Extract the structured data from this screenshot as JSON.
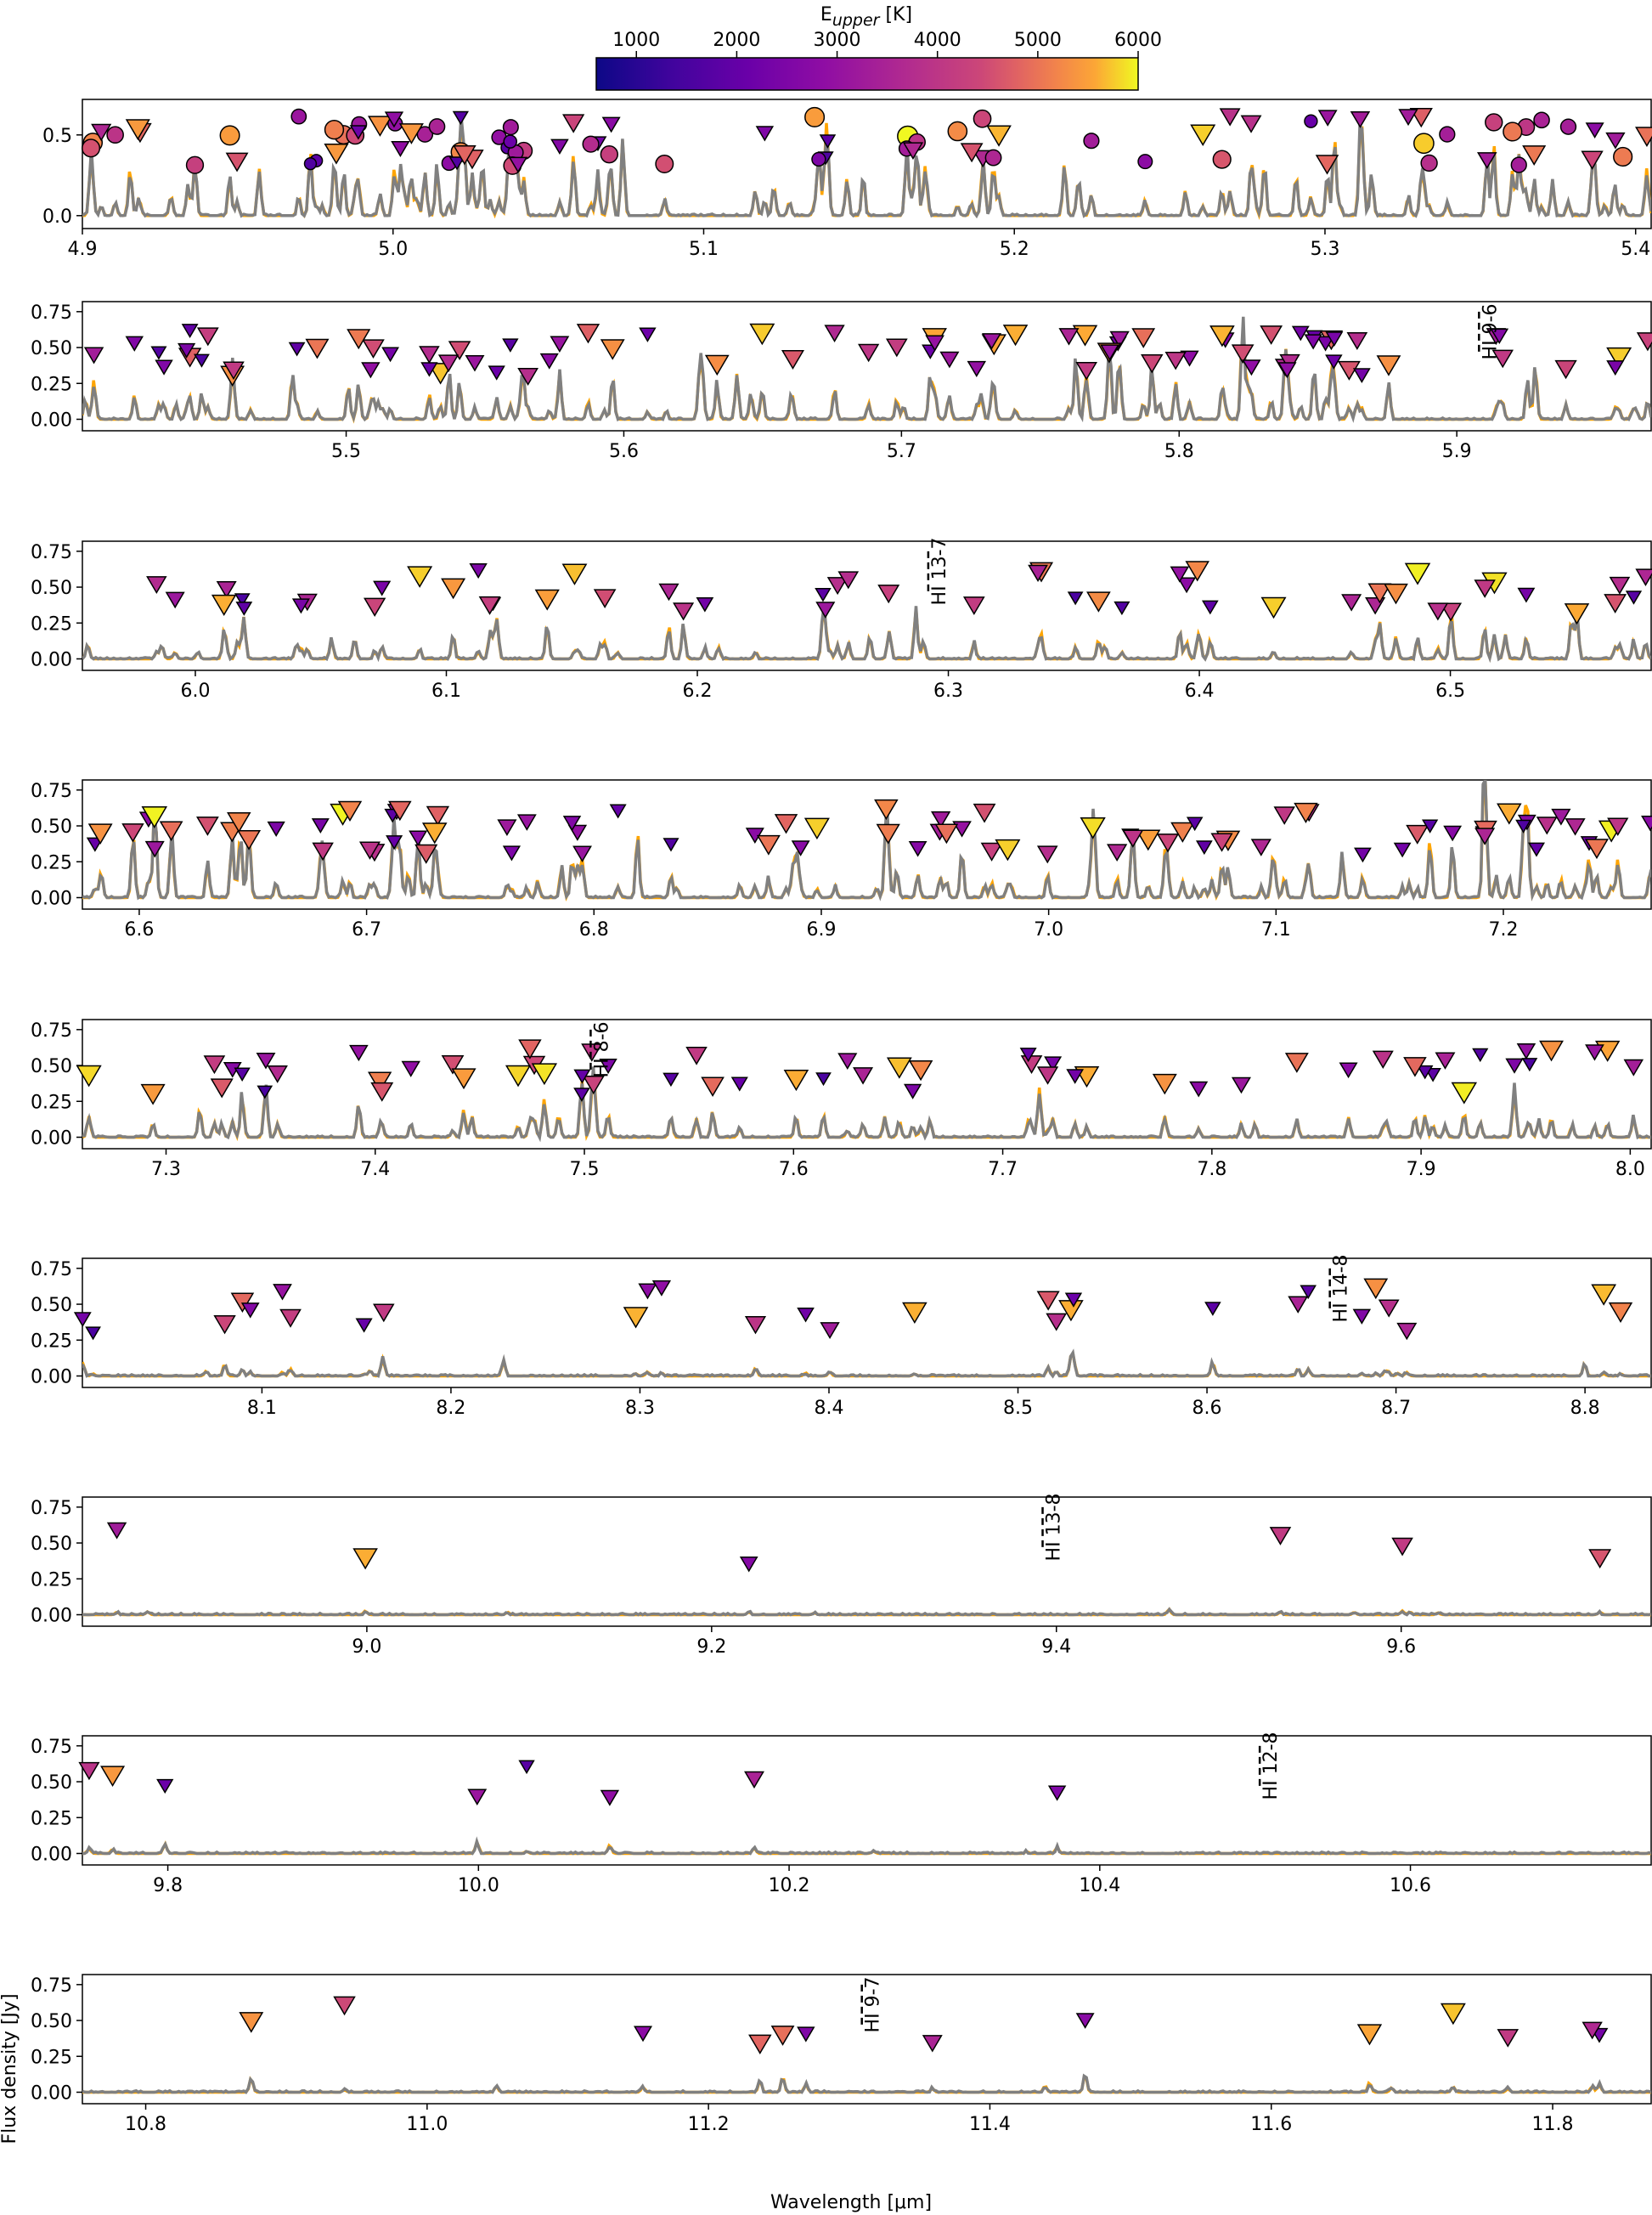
{
  "chart_data": {
    "type": "line",
    "xlabel": "Wavelength [μm]",
    "ylabel": "Flux density [Jy]",
    "series": [
      {
        "color": "#ffa500"
      },
      {
        "color": "#808080"
      }
    ],
    "colorbar": {
      "label": "E",
      "label_sub": "upper",
      "label_unit": " [K]",
      "colormap": "plasma",
      "range": [
        600,
        6000
      ],
      "ticks": [
        {
          "value": 1000,
          "label": "1000"
        },
        {
          "value": 2000,
          "label": "2000"
        },
        {
          "value": 3000,
          "label": "3000"
        },
        {
          "value": 4000,
          "label": "4000"
        },
        {
          "value": 5000,
          "label": "5000"
        },
        {
          "value": 6000,
          "label": "6000"
        }
      ]
    },
    "panels": [
      {
        "xlim": [
          4.9,
          5.405
        ],
        "ylim": [
          -0.08,
          0.72
        ],
        "xticks": [
          {
            "v": 4.9,
            "l": "4.9"
          },
          {
            "v": 5.0,
            "l": "5.0"
          },
          {
            "v": 5.1,
            "l": "5.1"
          },
          {
            "v": 5.2,
            "l": "5.2"
          },
          {
            "v": 5.3,
            "l": "5.3"
          },
          {
            "v": 5.4,
            "l": "5.4"
          }
        ],
        "yticks": [
          {
            "v": 0.0,
            "l": "0.0"
          },
          {
            "v": 0.5,
            "l": "0.5"
          }
        ],
        "hi": []
      },
      {
        "xlim": [
          5.405,
          5.97
        ],
        "ylim": [
          -0.08,
          0.82
        ],
        "xticks": [
          {
            "v": 5.5,
            "l": "5.5"
          },
          {
            "v": 5.6,
            "l": "5.6"
          },
          {
            "v": 5.7,
            "l": "5.7"
          },
          {
            "v": 5.8,
            "l": "5.8"
          },
          {
            "v": 5.9,
            "l": "5.9"
          }
        ],
        "yticks": [
          {
            "v": 0.0,
            "l": "0.00"
          },
          {
            "v": 0.25,
            "l": "0.25"
          },
          {
            "v": 0.5,
            "l": "0.50"
          },
          {
            "v": 0.75,
            "l": "0.75"
          }
        ],
        "hi": [
          {
            "x": 5.908,
            "label": "HI 9-6"
          }
        ]
      },
      {
        "xlim": [
          5.955,
          6.58
        ],
        "ylim": [
          -0.08,
          0.82
        ],
        "xticks": [
          {
            "v": 6.0,
            "l": "6.0"
          },
          {
            "v": 6.1,
            "l": "6.1"
          },
          {
            "v": 6.2,
            "l": "6.2"
          },
          {
            "v": 6.3,
            "l": "6.3"
          },
          {
            "v": 6.4,
            "l": "6.4"
          },
          {
            "v": 6.5,
            "l": "6.5"
          }
        ],
        "yticks": [
          {
            "v": 0.0,
            "l": "0.00"
          },
          {
            "v": 0.25,
            "l": "0.25"
          },
          {
            "v": 0.5,
            "l": "0.50"
          },
          {
            "v": 0.75,
            "l": "0.75"
          }
        ],
        "hi": [
          {
            "x": 6.292,
            "label": "HI 13-7"
          }
        ]
      },
      {
        "xlim": [
          6.575,
          7.265
        ],
        "ylim": [
          -0.08,
          0.82
        ],
        "xticks": [
          {
            "v": 6.6,
            "l": "6.6"
          },
          {
            "v": 6.7,
            "l": "6.7"
          },
          {
            "v": 6.8,
            "l": "6.8"
          },
          {
            "v": 6.9,
            "l": "6.9"
          },
          {
            "v": 7.0,
            "l": "7.0"
          },
          {
            "v": 7.1,
            "l": "7.1"
          },
          {
            "v": 7.2,
            "l": "7.2"
          }
        ],
        "yticks": [
          {
            "v": 0.0,
            "l": "0.00"
          },
          {
            "v": 0.25,
            "l": "0.25"
          },
          {
            "v": 0.5,
            "l": "0.50"
          },
          {
            "v": 0.75,
            "l": "0.75"
          }
        ],
        "hi": []
      },
      {
        "xlim": [
          7.26,
          8.01
        ],
        "ylim": [
          -0.08,
          0.82
        ],
        "xticks": [
          {
            "v": 7.3,
            "l": "7.3"
          },
          {
            "v": 7.4,
            "l": "7.4"
          },
          {
            "v": 7.5,
            "l": "7.5"
          },
          {
            "v": 7.6,
            "l": "7.6"
          },
          {
            "v": 7.7,
            "l": "7.7"
          },
          {
            "v": 7.8,
            "l": "7.8"
          },
          {
            "v": 7.9,
            "l": "7.9"
          },
          {
            "v": 8.0,
            "l": "8.0"
          }
        ],
        "yticks": [
          {
            "v": 0.0,
            "l": "0.00"
          },
          {
            "v": 0.25,
            "l": "0.25"
          },
          {
            "v": 0.5,
            "l": "0.50"
          },
          {
            "v": 0.75,
            "l": "0.75"
          }
        ],
        "hi": [
          {
            "x": 7.503,
            "label": "HI 8-6"
          }
        ]
      },
      {
        "xlim": [
          8.005,
          8.835
        ],
        "ylim": [
          -0.08,
          0.82
        ],
        "xticks": [
          {
            "v": 8.1,
            "l": "8.1"
          },
          {
            "v": 8.2,
            "l": "8.2"
          },
          {
            "v": 8.3,
            "l": "8.3"
          },
          {
            "v": 8.4,
            "l": "8.4"
          },
          {
            "v": 8.5,
            "l": "8.5"
          },
          {
            "v": 8.6,
            "l": "8.6"
          },
          {
            "v": 8.7,
            "l": "8.7"
          },
          {
            "v": 8.8,
            "l": "8.8"
          }
        ],
        "yticks": [
          {
            "v": 0.0,
            "l": "0.00"
          },
          {
            "v": 0.25,
            "l": "0.25"
          },
          {
            "v": 0.5,
            "l": "0.50"
          },
          {
            "v": 0.75,
            "l": "0.75"
          }
        ],
        "hi": [
          {
            "x": 8.665,
            "label": "HI 14-8"
          }
        ]
      },
      {
        "xlim": [
          8.835,
          9.745
        ],
        "ylim": [
          -0.08,
          0.82
        ],
        "xticks": [
          {
            "v": 9.0,
            "l": "9.0"
          },
          {
            "v": 9.2,
            "l": "9.2"
          },
          {
            "v": 9.4,
            "l": "9.4"
          },
          {
            "v": 9.6,
            "l": "9.6"
          }
        ],
        "yticks": [
          {
            "v": 0.0,
            "l": "0.00"
          },
          {
            "v": 0.25,
            "l": "0.25"
          },
          {
            "v": 0.5,
            "l": "0.50"
          },
          {
            "v": 0.75,
            "l": "0.75"
          }
        ],
        "hi": [
          {
            "x": 9.392,
            "label": "HI 13-8"
          }
        ]
      },
      {
        "xlim": [
          9.745,
          10.755
        ],
        "ylim": [
          -0.08,
          0.82
        ],
        "xticks": [
          {
            "v": 9.8,
            "l": "9.8"
          },
          {
            "v": 10.0,
            "l": "10.0"
          },
          {
            "v": 10.2,
            "l": "10.2"
          },
          {
            "v": 10.4,
            "l": "10.4"
          },
          {
            "v": 10.6,
            "l": "10.6"
          }
        ],
        "yticks": [
          {
            "v": 0.0,
            "l": "0.00"
          },
          {
            "v": 0.25,
            "l": "0.25"
          },
          {
            "v": 0.5,
            "l": "0.50"
          },
          {
            "v": 0.75,
            "l": "0.75"
          }
        ],
        "hi": [
          {
            "x": 10.503,
            "label": "HI 12-8"
          }
        ]
      },
      {
        "xlim": [
          10.755,
          11.87
        ],
        "ylim": [
          -0.08,
          0.82
        ],
        "xticks": [
          {
            "v": 10.8,
            "l": "10.8"
          },
          {
            "v": 11.0,
            "l": "11.0"
          },
          {
            "v": 11.2,
            "l": "11.2"
          },
          {
            "v": 11.4,
            "l": "11.4"
          },
          {
            "v": 11.6,
            "l": "11.6"
          },
          {
            "v": 11.8,
            "l": "11.8"
          }
        ],
        "yticks": [
          {
            "v": 0.0,
            "l": "0.00"
          },
          {
            "v": 0.25,
            "l": "0.25"
          },
          {
            "v": 0.5,
            "l": "0.50"
          },
          {
            "v": 0.75,
            "l": "0.75"
          }
        ],
        "hi": [
          {
            "x": 11.309,
            "label": "HI 9-7"
          }
        ]
      }
    ]
  }
}
